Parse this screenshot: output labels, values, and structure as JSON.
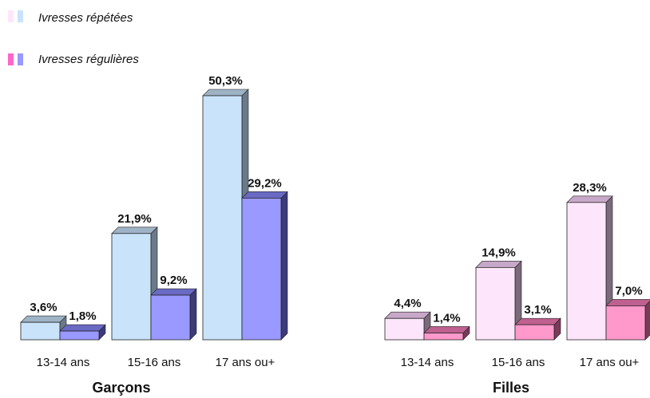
{
  "legend": [
    {
      "label": "Ivresses répétées",
      "colors": [
        "#fde6fb",
        "#c9e3fb"
      ]
    },
    {
      "label": "Ivresses régulières",
      "colors": [
        "#ff66cc",
        "#9999ff"
      ]
    }
  ],
  "chart_data": [
    {
      "type": "bar",
      "title": "Garçons",
      "categories": [
        "13-14 ans",
        "15-16 ans",
        "17 ans ou+"
      ],
      "series": [
        {
          "name": "Ivresses répétées",
          "values": [
            3.6,
            21.9,
            50.3
          ],
          "labels": [
            "3,6%",
            "21,9%",
            "50,3%"
          ],
          "color": "#c9e3fb",
          "side": "#6b7a8a",
          "top": "#9fb3c6"
        },
        {
          "name": "Ivresses régulières",
          "values": [
            1.8,
            9.2,
            29.2
          ],
          "labels": [
            "1,8%",
            "9,2%",
            "29,2%"
          ],
          "color": "#9999ff",
          "side": "#3b3b7a",
          "top": "#6a6ac4"
        }
      ],
      "ylim": [
        0,
        50.3
      ],
      "grid": false
    },
    {
      "type": "bar",
      "title": "Filles",
      "categories": [
        "13-14 ans",
        "15-16 ans",
        "17 ans ou+"
      ],
      "series": [
        {
          "name": "Ivresses répétées",
          "values": [
            4.4,
            14.9,
            28.3
          ],
          "labels": [
            "4,4%",
            "14,9%",
            "28,3%"
          ],
          "color": "#fde6fb",
          "side": "#7a6a7a",
          "top": "#c8a8c8"
        },
        {
          "name": "Ivresses régulières",
          "values": [
            1.4,
            3.1,
            7.0
          ],
          "labels": [
            "1,4%",
            "3,1%",
            "7,0%"
          ],
          "color": "#ff99cc",
          "side": "#7a3a5a",
          "top": "#c06090"
        }
      ],
      "ylim": [
        0,
        50.3
      ],
      "grid": false
    }
  ]
}
